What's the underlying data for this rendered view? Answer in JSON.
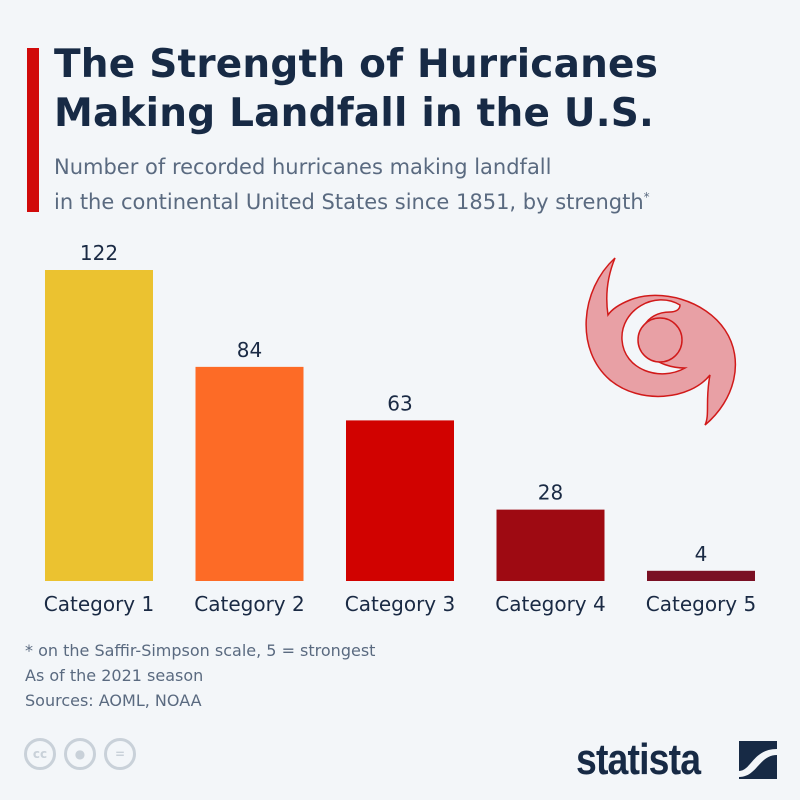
{
  "header": {
    "title_line1": "The Strength of Hurricanes",
    "title_line2": "Making Landfall in the U.S.",
    "subtitle_line1": "Number of recorded hurricanes making landfall",
    "subtitle_line2": "in the continental United States since 1851, by strength",
    "subtitle_mark": "*"
  },
  "chart_data": {
    "type": "bar",
    "title": "The Strength of Hurricanes Making Landfall in the U.S.",
    "categories": [
      "Category 1",
      "Category 2",
      "Category 3",
      "Category 4",
      "Category 5"
    ],
    "values": [
      122,
      84,
      63,
      28,
      4
    ],
    "colors": [
      "#ebc230",
      "#fd6b26",
      "#d10200",
      "#9e0a12",
      "#7a1024"
    ],
    "ylim": [
      0,
      122
    ],
    "grid": false,
    "data_labels": true
  },
  "footer": {
    "note1": "* on the Saffir-Simpson scale, 5 = strongest",
    "note2": "As of the 2021 season",
    "sources": "Sources: AOML, NOAA",
    "license_icons": [
      "cc-icon",
      "attribution-icon",
      "no-derivatives-icon"
    ],
    "cc_label": "cc",
    "nd_label": "=",
    "logo": "statista"
  },
  "colors": {
    "accent": "#d10a0a",
    "title": "#172a45",
    "hurricane_icon": "#e8a0a5"
  }
}
